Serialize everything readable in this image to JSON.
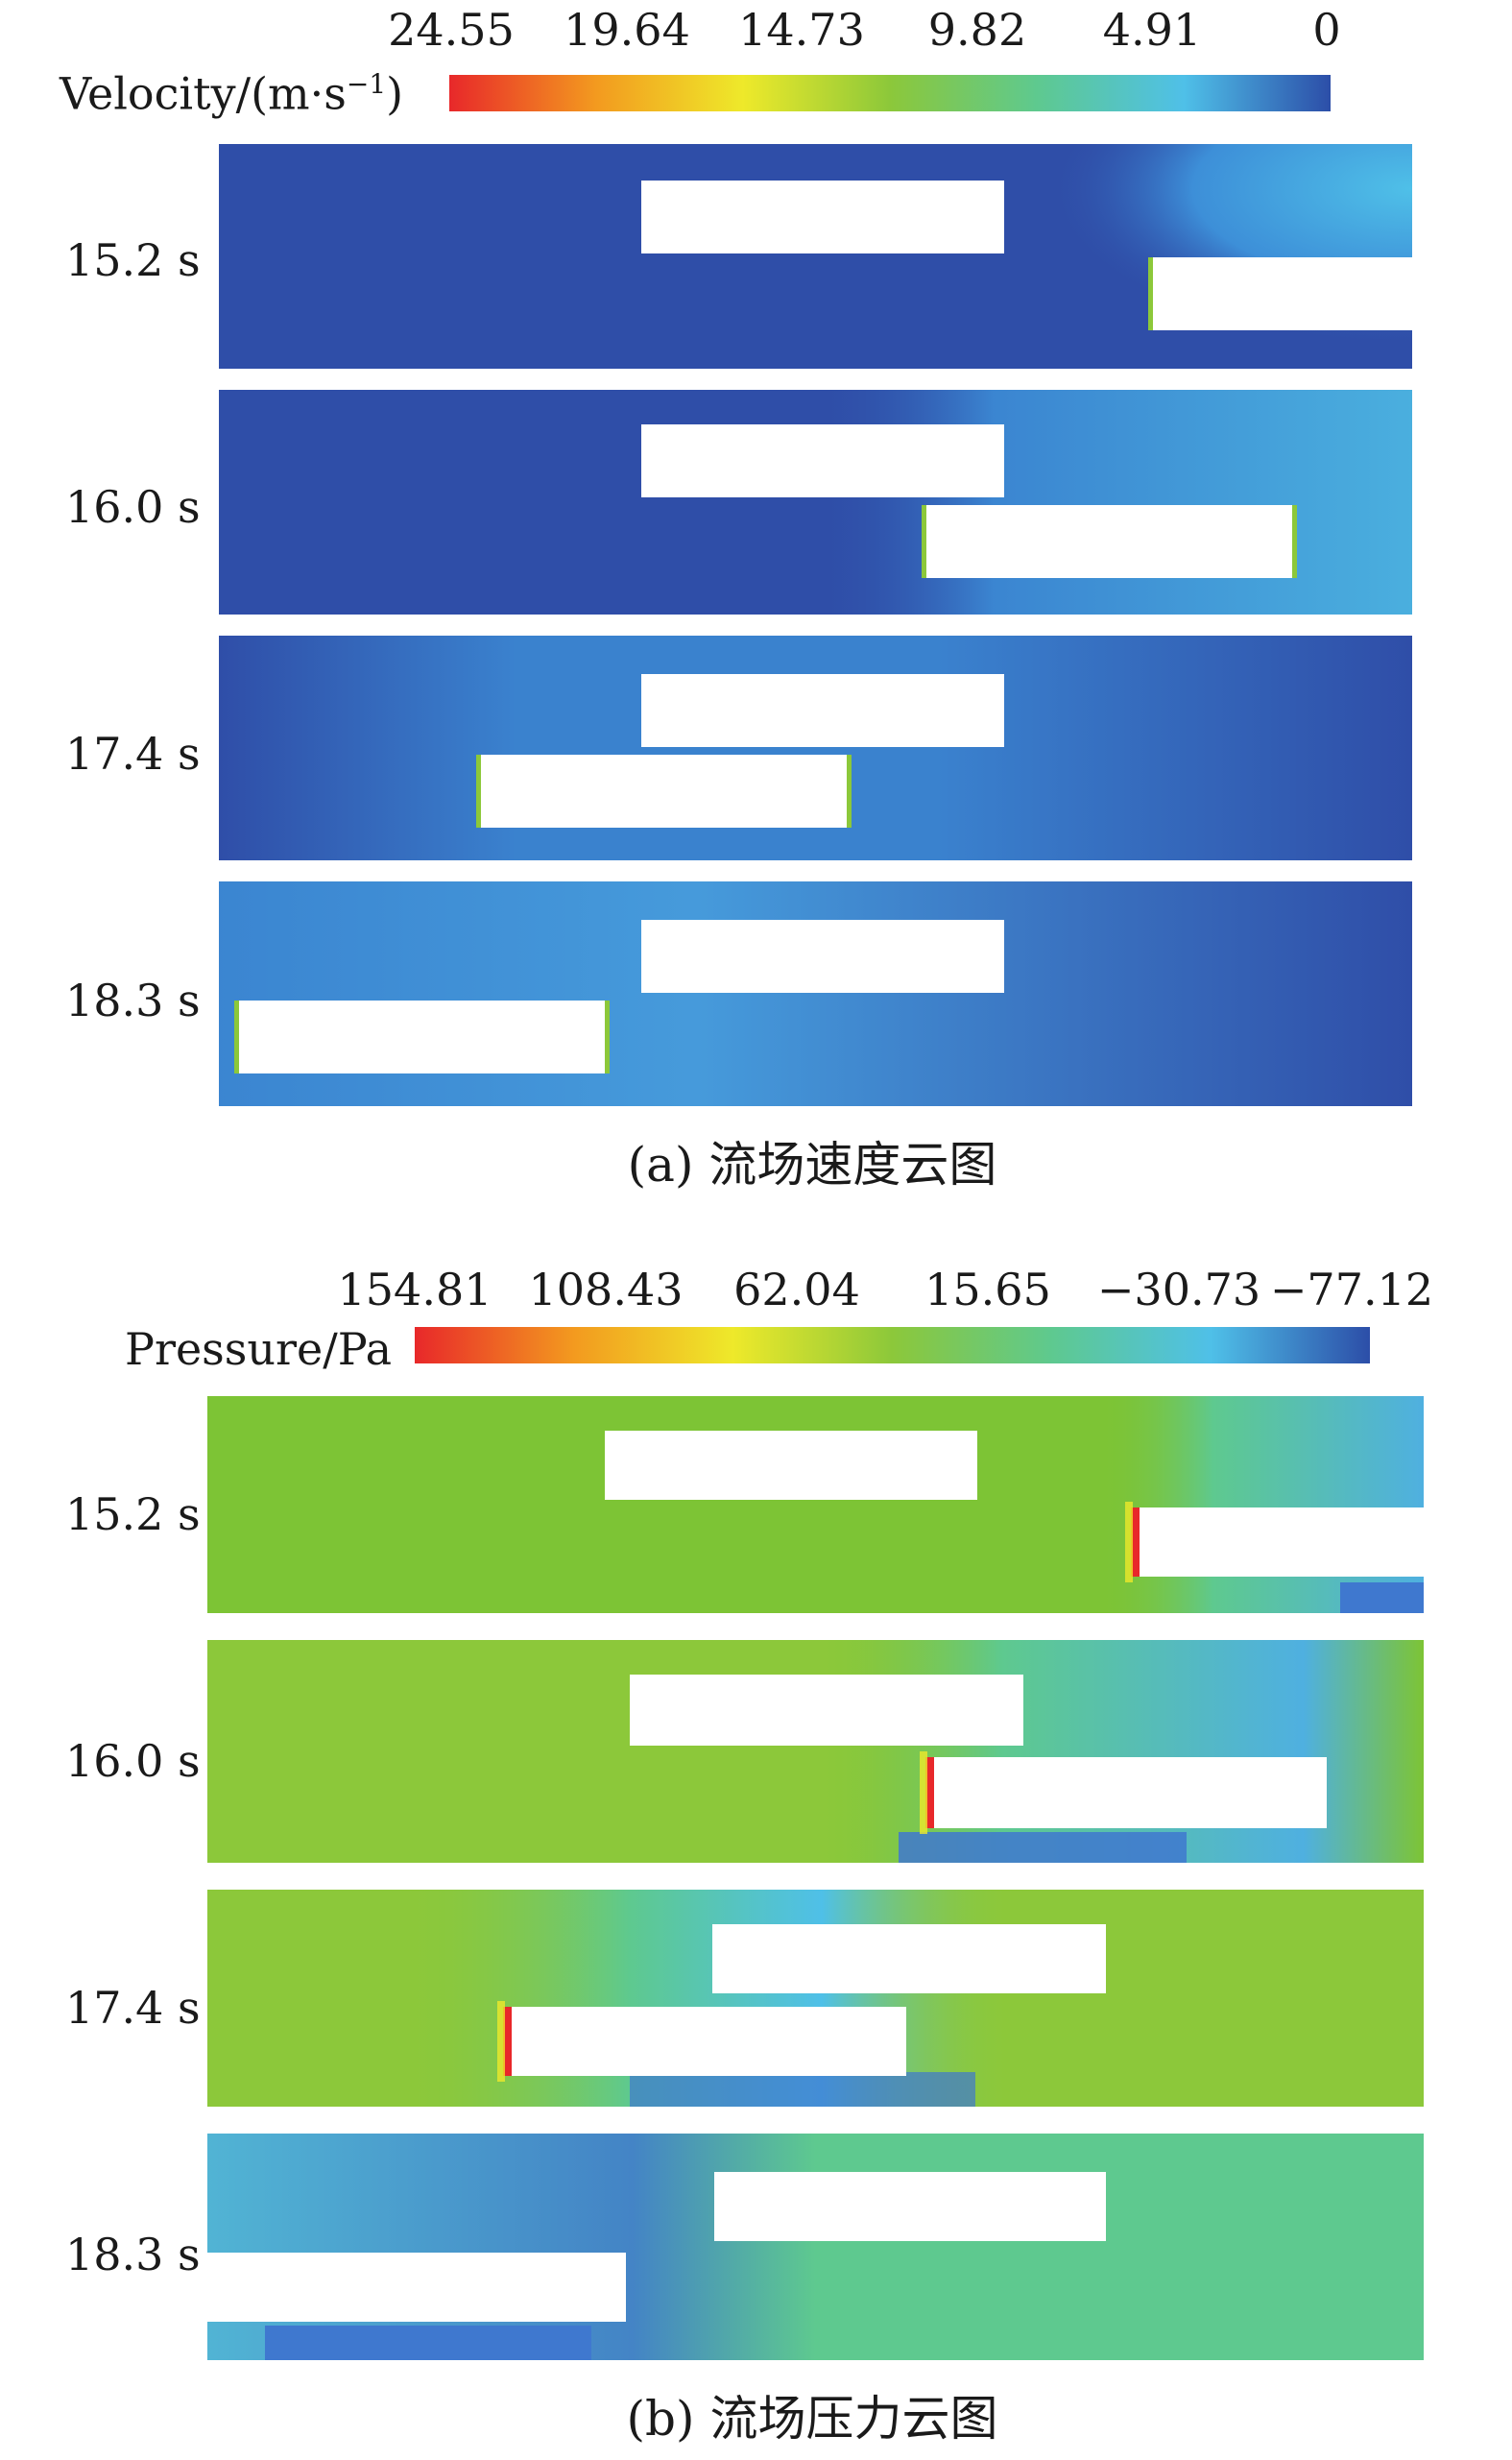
{
  "velocity": {
    "legend_label": "Velocity/(m·s",
    "legend_label_sup": "−1",
    "legend_label_tail": ")",
    "ticks": [
      "24.55",
      "19.64",
      "14.73",
      "9.82",
      "4.91",
      "0"
    ],
    "colormap": [
      "#e8282a",
      "#f39a1f",
      "#eee92a",
      "#8cc83a",
      "#5ec98f",
      "#4fc0e8",
      "#2c4ea8"
    ],
    "background_color": "#2f4ea8",
    "wake_color": "#4aa8e4",
    "times": [
      "15.2 s",
      "16.0 s",
      "17.4 s",
      "18.3 s"
    ],
    "caption": "(a) 流场速度云图"
  },
  "pressure": {
    "legend_label": "Pressure/Pa",
    "ticks": [
      "154.81",
      "108.43",
      "62.04",
      "15.65",
      "−30.73",
      "−77.12"
    ],
    "colormap": [
      "#e8282a",
      "#f39a1f",
      "#eee92a",
      "#8cc83a",
      "#5ec98f",
      "#4fc0e8",
      "#2c4ea8"
    ],
    "background_color": "#7dc435",
    "low_color": "#3f78cf",
    "times": [
      "15.2 s",
      "16.0 s",
      "17.4 s",
      "18.3 s"
    ],
    "caption": "(b) 流场压力云图"
  }
}
